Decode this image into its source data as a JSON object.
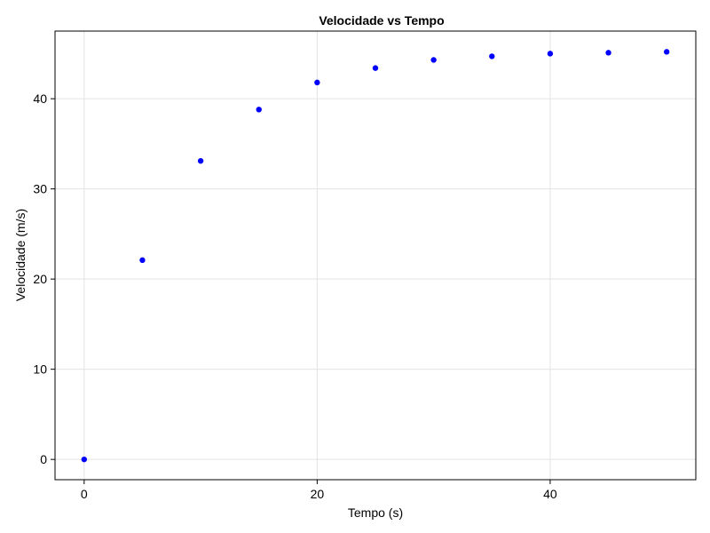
{
  "chart_data": {
    "type": "scatter",
    "title": "Velocidade vs Tempo",
    "xlabel": "Tempo (s)",
    "ylabel": "Velocidade (m/s)",
    "xlim": [
      -2.5,
      52.5
    ],
    "ylim": [
      -2.25,
      47.5
    ],
    "xticks": [
      0,
      20,
      40
    ],
    "yticks": [
      0,
      10,
      20,
      30,
      40
    ],
    "grid": true,
    "marker_color": "#0000ff",
    "series": [
      {
        "x": [
          0,
          5,
          10,
          15,
          20,
          25,
          30,
          35,
          40,
          45,
          50
        ],
        "y": [
          0,
          22.1,
          33.1,
          38.8,
          41.8,
          43.4,
          44.3,
          44.7,
          45.0,
          45.1,
          45.2
        ]
      }
    ]
  }
}
